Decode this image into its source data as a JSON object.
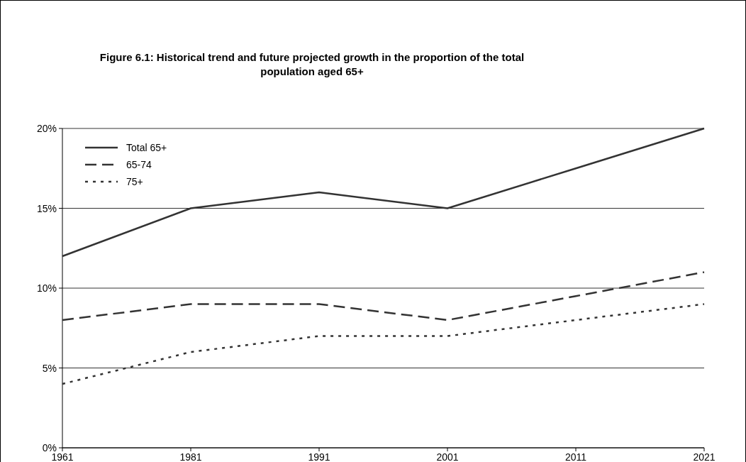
{
  "chart_data": {
    "type": "line",
    "title": "Figure 6.1:  Historical trend and future projected growth in the proportion of the total population aged 65+",
    "categories": [
      "1961",
      "1981",
      "1991",
      "2001",
      "2011",
      "2021"
    ],
    "series": [
      {
        "name": "Total 65+",
        "color": "#333333",
        "values": [
          12,
          15,
          16,
          15,
          17.5,
          20
        ],
        "line_style": "solid"
      },
      {
        "name": "65-74",
        "color": "#333333",
        "values": [
          8,
          9,
          9,
          8,
          9.5,
          11
        ],
        "line_style": "dashed"
      },
      {
        "name": "75+",
        "color": "#333333",
        "values": [
          4,
          6,
          7,
          7,
          8,
          9
        ],
        "line_style": "dotted"
      }
    ],
    "ylim": [
      0,
      20
    ],
    "yticks": [
      {
        "value": 0,
        "label": "0%"
      },
      {
        "value": 5,
        "label": "5%"
      },
      {
        "value": 10,
        "label": "10%"
      },
      {
        "value": 15,
        "label": "15%"
      },
      {
        "value": 20,
        "label": "20%"
      }
    ],
    "grid": "y",
    "legend": "top left",
    "marker": "none"
  }
}
